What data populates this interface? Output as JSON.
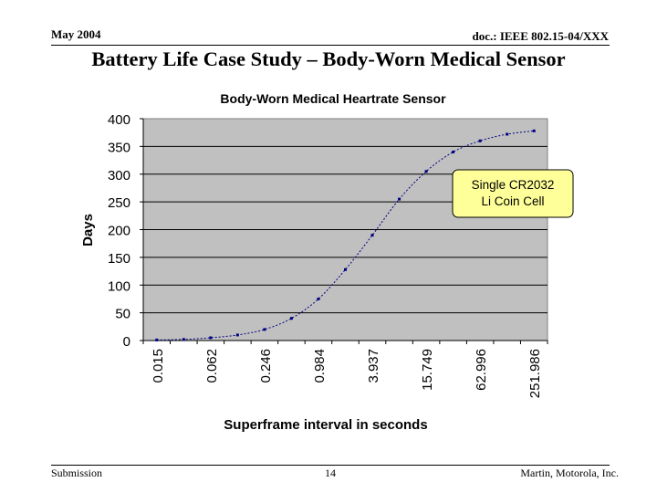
{
  "slide": {
    "date": "May 2004",
    "doc_id": "doc.: IEEE 802.15-04/XXX",
    "title": "Battery Life Case Study – Body-Worn Medical Sensor"
  },
  "footer": {
    "left": "Submission",
    "page": "14",
    "right": "Martin, Motorola, Inc."
  },
  "chart_data": {
    "type": "line",
    "title": "Body-Worn Medical Heartrate Sensor",
    "xlabel": "Superframe interval in seconds",
    "ylabel": "Days",
    "ylim": [
      0,
      400
    ],
    "yticks": [
      0,
      50,
      100,
      150,
      200,
      250,
      300,
      350,
      400
    ],
    "xtick_labels": [
      "0.015",
      "0.062",
      "0.246",
      "0.984",
      "3.937",
      "15.749",
      "62.996",
      "251.986"
    ],
    "x": [
      0.015,
      0.031,
      0.062,
      0.123,
      0.246,
      0.492,
      0.984,
      1.969,
      3.937,
      7.875,
      15.749,
      31.498,
      62.996,
      125.993,
      251.986
    ],
    "y": [
      1,
      2,
      5,
      10,
      20,
      40,
      75,
      128,
      190,
      255,
      305,
      340,
      360,
      372,
      378
    ],
    "grid": "horizontal",
    "plot_background": "#c0c0c0",
    "line_color": "#000080",
    "annotation": "Single CR2032 Li Coin Cell",
    "annotation_color": "#ffff99"
  }
}
